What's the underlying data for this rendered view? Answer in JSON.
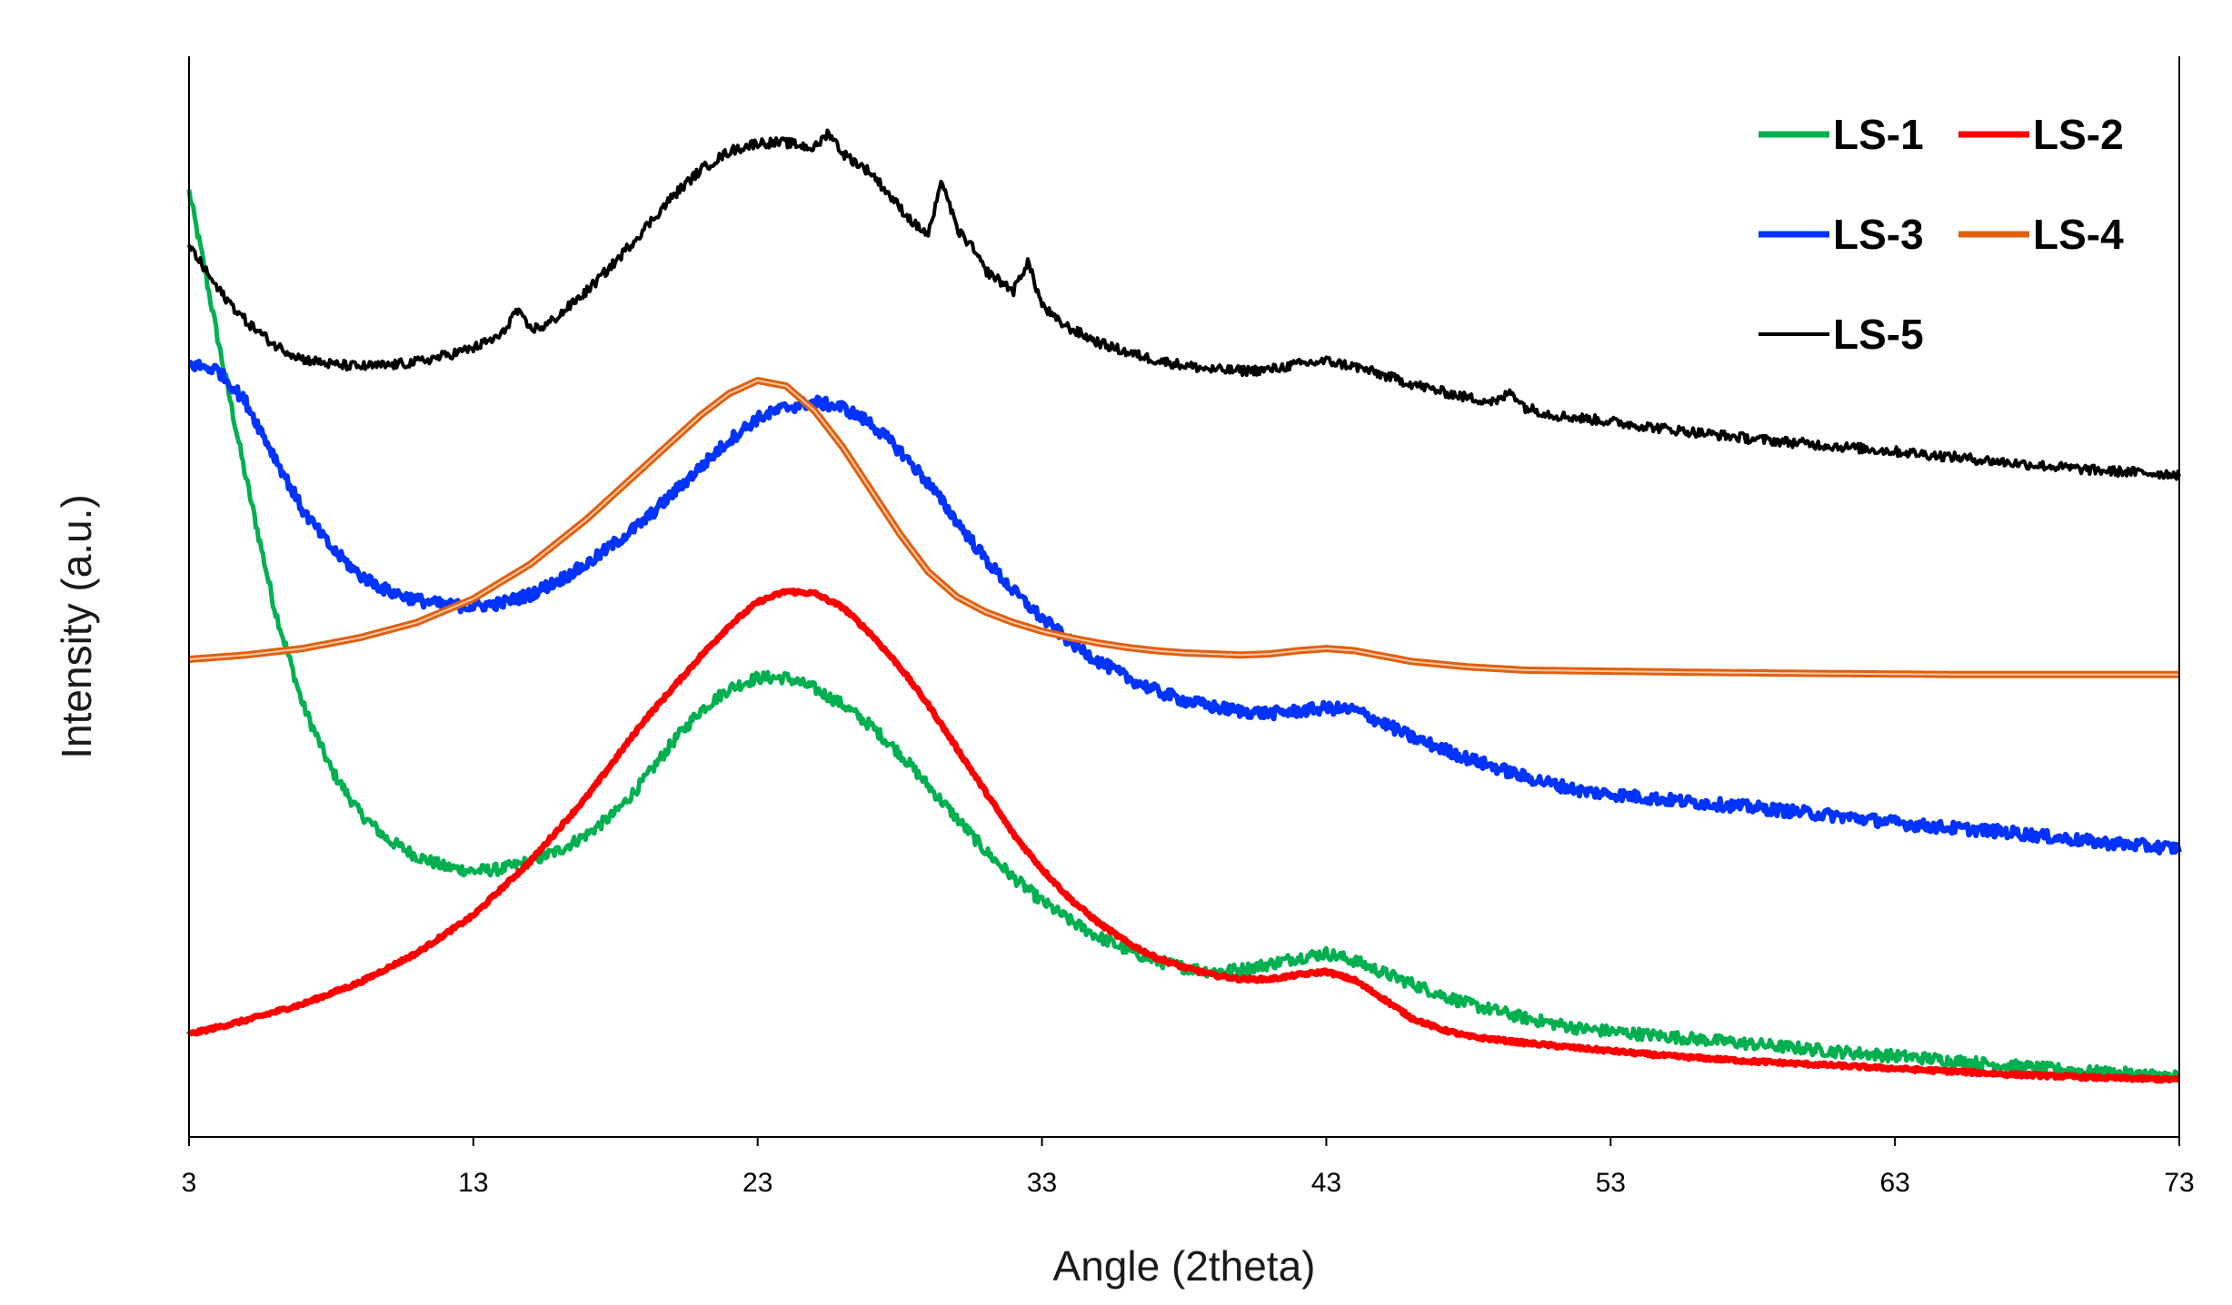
{
  "chart_data": {
    "type": "line",
    "title": "",
    "xlabel": "Angle (2theta)",
    "ylabel": "Intensity (a.u.)",
    "xlim": [
      3,
      73
    ],
    "ylim": [
      0,
      100
    ],
    "xticks": [
      "3",
      "13",
      "23",
      "33",
      "43",
      "53",
      "63",
      "73"
    ],
    "yticks_shown": false,
    "grid": false,
    "legend_position": "top-right",
    "series": [
      {
        "name": "LS-1",
        "color": "#00b050",
        "x": [
          3,
          3.5,
          4,
          5,
          6,
          7,
          8,
          9,
          10,
          11,
          12,
          13,
          14,
          15,
          16,
          17,
          18,
          19,
          20,
          21,
          22,
          23,
          24,
          25,
          26,
          27,
          28,
          29,
          30,
          31,
          32,
          33,
          34,
          35,
          36,
          37,
          38,
          39,
          40,
          41,
          42,
          43,
          44,
          45,
          46,
          47,
          48,
          50,
          52,
          55,
          58,
          61,
          64,
          67,
          70,
          73
        ],
        "y": [
          87.5,
          81,
          74,
          61,
          49,
          40,
          34,
          30,
          27.5,
          26,
          25,
          24.6,
          24.8,
          25.5,
          26.5,
          28,
          30,
          33,
          36.5,
          39.5,
          41.5,
          42.5,
          42.5,
          41.5,
          40,
          38,
          35.5,
          32.5,
          29.5,
          26.5,
          24,
          21.8,
          20,
          18.5,
          17.3,
          16.3,
          15.7,
          15.3,
          15.5,
          16,
          16.6,
          17,
          16.3,
          15.2,
          14.2,
          13.2,
          12.3,
          11,
          10,
          9.3,
          8.6,
          7.9,
          7.3,
          6.6,
          6,
          5.6
        ]
      },
      {
        "name": "LS-2",
        "color": "#ff0000",
        "x": [
          3,
          5,
          7,
          9,
          11,
          13,
          15,
          17,
          19,
          21,
          22,
          23,
          24,
          25,
          26,
          27,
          28,
          29,
          30,
          31,
          32,
          33,
          34,
          35,
          36,
          37,
          38,
          39,
          40,
          41,
          42,
          43,
          44,
          45,
          46,
          47,
          48,
          50,
          52,
          55,
          58,
          61,
          64,
          67,
          70,
          73
        ],
        "y": [
          9.5,
          10.8,
          12.3,
          14.3,
          17,
          20.5,
          25.5,
          31.5,
          38.5,
          44.5,
          47.3,
          49.5,
          50.5,
          50.3,
          49,
          46.5,
          43.5,
          40,
          36,
          32,
          28,
          24.8,
          22,
          19.8,
          18,
          16.6,
          15.7,
          15,
          14.6,
          14.6,
          15,
          15.3,
          14.5,
          12.8,
          11,
          10,
          9.3,
          8.7,
          8.2,
          7.5,
          7,
          6.6,
          6.2,
          5.8,
          5.5,
          5.3
        ]
      },
      {
        "name": "LS-3",
        "color": "#0033ff",
        "x": [
          3,
          4,
          5,
          6,
          7,
          8,
          9,
          10,
          11,
          12,
          13,
          14,
          15,
          16,
          17,
          18,
          19,
          20,
          21,
          22,
          23,
          24,
          25,
          26,
          27,
          28,
          29,
          30,
          31,
          32,
          33,
          34,
          35,
          36,
          37,
          38,
          39,
          40,
          41,
          42,
          43,
          44,
          45,
          46,
          48,
          50,
          52,
          55,
          58,
          61,
          64,
          67,
          70,
          73
        ],
        "y": [
          71.5,
          71,
          68,
          63,
          58,
          54.5,
          52,
          50.5,
          49.7,
          49.2,
          49.1,
          49.4,
          50.2,
          51.5,
          53,
          55,
          57,
          59.5,
          62,
          64.5,
          66.5,
          67.5,
          68,
          67.5,
          66,
          63.5,
          60.5,
          57,
          53.5,
          50.5,
          48,
          45.8,
          44,
          42.5,
          41.3,
          40.4,
          39.8,
          39.4,
          39.2,
          39.4,
          39.7,
          39.5,
          38.3,
          37,
          35,
          33.3,
          32,
          31.2,
          30.5,
          29.7,
          28.8,
          28.2,
          27.3,
          26.7
        ]
      },
      {
        "name": "LS-4",
        "color": "#e06010",
        "x": [
          3,
          5,
          7,
          9,
          11,
          13,
          15,
          17,
          19,
          21,
          22,
          23,
          24,
          25,
          26,
          27,
          28,
          29,
          30,
          31,
          32,
          33,
          34,
          35,
          36,
          37,
          38,
          39,
          40,
          41,
          42,
          43,
          44,
          45,
          46,
          48,
          50,
          53,
          56,
          60,
          65,
          70,
          73
        ],
        "y": [
          44.2,
          44.6,
          45.2,
          46.2,
          47.6,
          49.8,
          53,
          57.2,
          62,
          66.8,
          68.8,
          70,
          69.5,
          67.2,
          63.8,
          59.8,
          55.8,
          52.3,
          50,
          48.6,
          47.6,
          46.8,
          46.2,
          45.7,
          45.3,
          45,
          44.8,
          44.7,
          44.6,
          44.7,
          45,
          45.2,
          45,
          44.5,
          44,
          43.5,
          43.2,
          43.1,
          43,
          42.9,
          42.8,
          42.8,
          42.8
        ]
      },
      {
        "name": "LS-5",
        "color": "#000000",
        "x": [
          3,
          4,
          5,
          6,
          7,
          8,
          9,
          10,
          11,
          12,
          13,
          14,
          14.5,
          15,
          15.5,
          16,
          17,
          18,
          19,
          20,
          21,
          22,
          23,
          24,
          25,
          25.5,
          26,
          27,
          28,
          28.5,
          29,
          29.5,
          30,
          30.5,
          31,
          32,
          32.5,
          33,
          33.5,
          34,
          35,
          36,
          37,
          38,
          39,
          40,
          41,
          42,
          43,
          44,
          45,
          46,
          47,
          48,
          49,
          49.5,
          50,
          51,
          53,
          55,
          58,
          61,
          64,
          67,
          70,
          73
        ],
        "y": [
          82.5,
          78.5,
          75.5,
          73.3,
          72,
          71.5,
          71.3,
          71.4,
          71.7,
          72.3,
          73,
          74.2,
          76.5,
          74.8,
          75,
          76,
          78.3,
          81,
          84,
          87,
          89.5,
          91.2,
          92,
          92,
          91.5,
          93,
          91,
          89.2,
          86,
          84.5,
          83.5,
          88.5,
          84,
          82.5,
          80.2,
          78.3,
          81,
          77,
          75.6,
          74.8,
          73.5,
          72.6,
          71.9,
          71.4,
          71,
          70.9,
          71,
          71.5,
          71.8,
          71.3,
          70.5,
          69.7,
          69,
          68.4,
          68,
          69,
          67.5,
          66.8,
          66.2,
          65.5,
          64.6,
          63.9,
          63.2,
          62.4,
          61.7,
          61.3
        ]
      }
    ]
  }
}
